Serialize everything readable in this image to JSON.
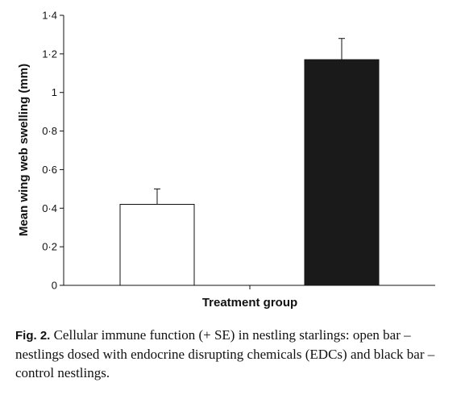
{
  "chart_data": {
    "type": "bar",
    "title": "",
    "xlabel": "Treatment group",
    "ylabel": "Mean wing web swelling (mm)",
    "ylim": [
      0,
      1.4
    ],
    "yticks": [
      {
        "value": 0,
        "label": "0"
      },
      {
        "value": 0.2,
        "label": "0·2"
      },
      {
        "value": 0.4,
        "label": "0·4"
      },
      {
        "value": 0.6,
        "label": "0·6"
      },
      {
        "value": 0.8,
        "label": "0·8"
      },
      {
        "value": 1.0,
        "label": "1"
      },
      {
        "value": 1.2,
        "label": "1·2"
      },
      {
        "value": 1.4,
        "label": "1·4"
      }
    ],
    "categories": [
      "",
      ""
    ],
    "values": [
      0.42,
      1.17
    ],
    "errors_plus": [
      0.08,
      0.11
    ],
    "bar_colors": [
      "#ffffff",
      "#1a1a1a"
    ],
    "grid": false,
    "legend": "none"
  },
  "caption": {
    "label": "Fig. 2.",
    "text": " Cellular immune function (+ SE) in nestling starlings: open bar – nestlings dosed with endocrine disrupting chemicals (EDCs) and black bar – control nestlings."
  }
}
